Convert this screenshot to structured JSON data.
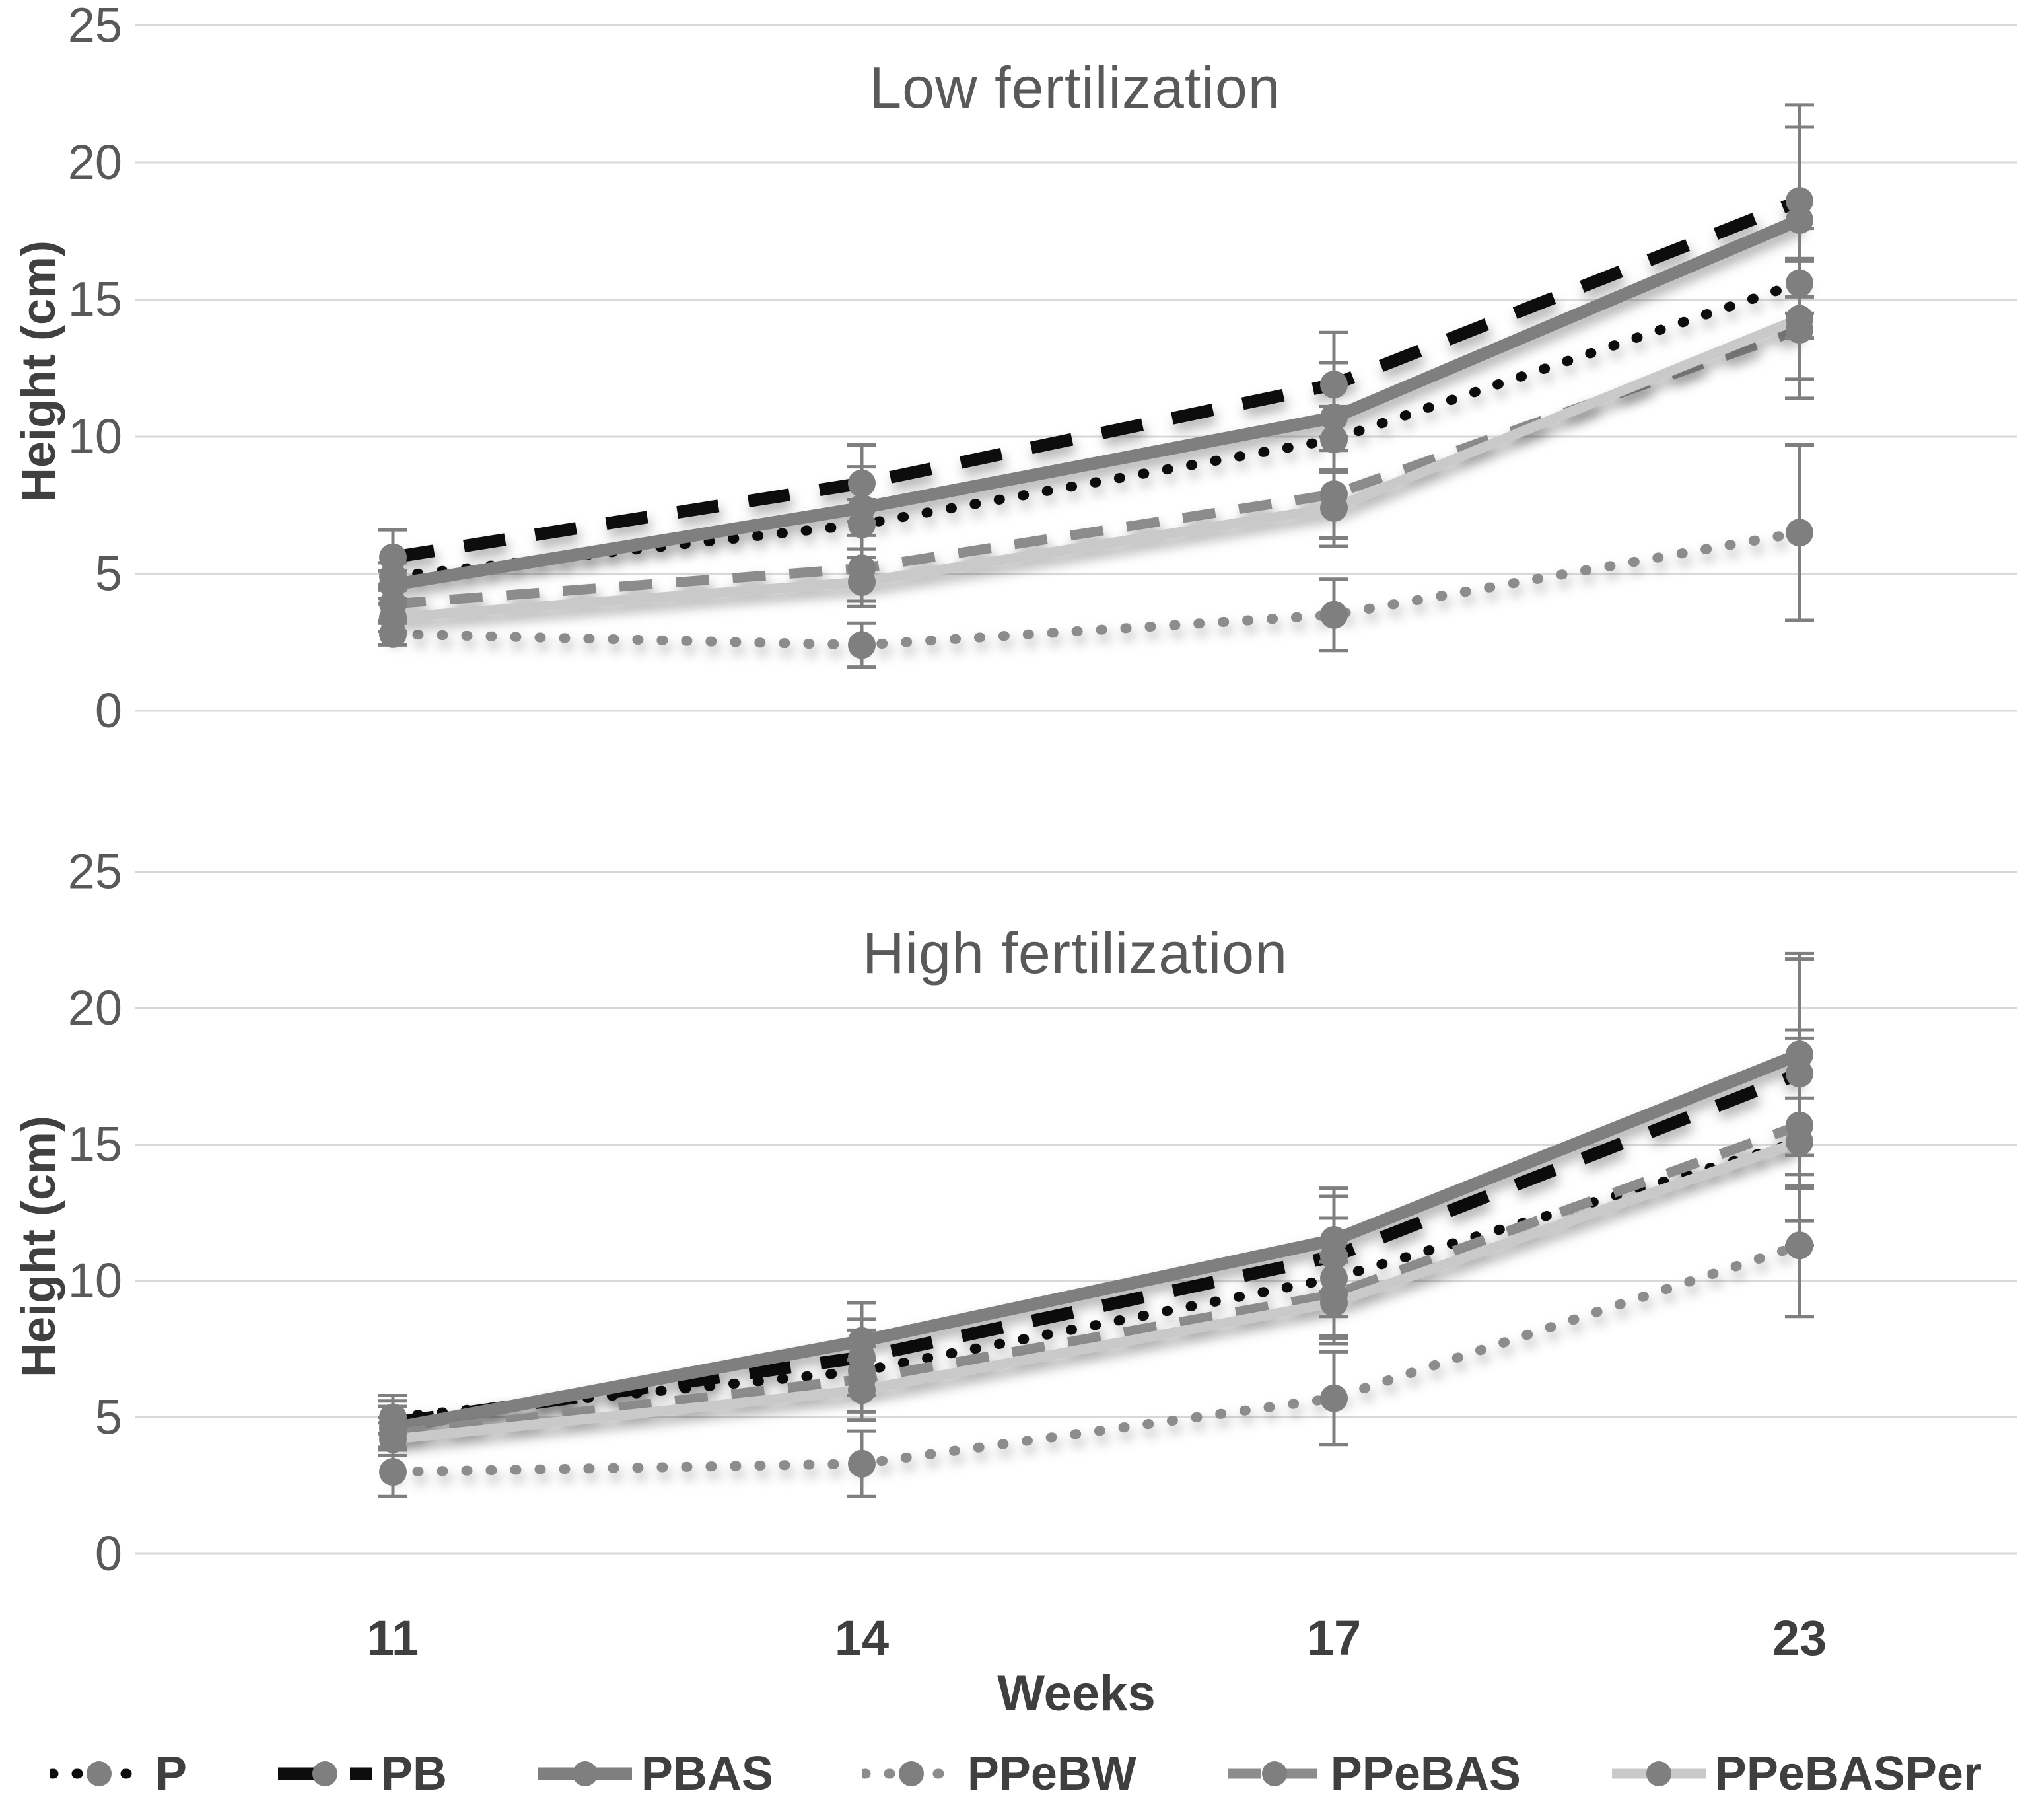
{
  "figure": {
    "background": "#ffffff",
    "grid_color": "#d9d9d9",
    "marker_color": "#7f7f7f",
    "error_bar_color": "#7f7f7f",
    "tick_label_color": "#595959",
    "category_label_color": "#3f3f3f",
    "title_color": "#595959"
  },
  "chart_data": [
    {
      "type": "line",
      "title": "Low fertilization",
      "ylabel": "Height (cm)",
      "xlabel": "",
      "x_categories": [
        11,
        14,
        17,
        23
      ],
      "ylim": [
        0,
        25
      ],
      "yticks": [
        25,
        20,
        15,
        10,
        5,
        0
      ],
      "grid": "horizontal",
      "legend_position": "bottom-shared",
      "marker": "circle",
      "series": [
        {
          "name": "P",
          "color": "#0d0d0d",
          "line": "dotted",
          "width": 15,
          "values": [
            4.9,
            6.8,
            9.9,
            15.6
          ],
          "errors": [
            0.5,
            0.9,
            1.2,
            2.0
          ]
        },
        {
          "name": "PB",
          "color": "#0d0d0d",
          "line": "dashed",
          "width": 19,
          "values": [
            5.6,
            8.3,
            11.9,
            18.6
          ],
          "errors": [
            1.0,
            1.4,
            1.9,
            3.5
          ]
        },
        {
          "name": "PBAS",
          "color": "#7f7f7f",
          "line": "solid",
          "width": 19,
          "values": [
            4.6,
            7.4,
            10.7,
            17.9
          ],
          "errors": [
            0.5,
            1.5,
            2.0,
            3.4
          ]
        },
        {
          "name": "PPeBW",
          "color": "#8c8c8c",
          "line": "dotted",
          "width": 15,
          "values": [
            2.8,
            2.4,
            3.5,
            6.5
          ],
          "errors": [
            0.4,
            0.8,
            1.3,
            3.2
          ]
        },
        {
          "name": "PPeBAS",
          "color": "#8c8c8c",
          "line": "dashed",
          "width": 15,
          "values": [
            3.9,
            5.2,
            7.9,
            13.9
          ],
          "errors": [
            0.6,
            1.2,
            1.6,
            2.5
          ]
        },
        {
          "name": "PPeBASPer",
          "color": "#c9c9c9",
          "line": "solid",
          "width": 15,
          "values": [
            3.4,
            4.7,
            7.4,
            14.3
          ],
          "errors": [
            0.5,
            0.9,
            1.4,
            2.2
          ]
        }
      ]
    },
    {
      "type": "line",
      "title": "High fertilization",
      "ylabel": "Height (cm)",
      "xlabel": "Weeks",
      "x_categories": [
        11,
        14,
        17,
        23
      ],
      "ylim": [
        0,
        25
      ],
      "yticks": [
        25,
        20,
        15,
        10,
        5,
        0
      ],
      "grid": "horizontal",
      "legend_position": "bottom-shared",
      "marker": "circle",
      "series": [
        {
          "name": "P",
          "color": "#0d0d0d",
          "line": "dotted",
          "width": 15,
          "values": [
            5.0,
            6.7,
            10.1,
            15.1
          ],
          "errors": [
            0.6,
            1.5,
            2.2,
            3.8
          ]
        },
        {
          "name": "PB",
          "color": "#0d0d0d",
          "line": "dashed",
          "width": 19,
          "values": [
            4.8,
            7.2,
            10.9,
            17.6
          ],
          "errors": [
            1.0,
            1.4,
            2.2,
            4.2
          ]
        },
        {
          "name": "PBAS",
          "color": "#7f7f7f",
          "line": "solid",
          "width": 19,
          "values": [
            4.6,
            7.8,
            11.5,
            18.3
          ],
          "errors": [
            0.8,
            1.4,
            1.9,
            3.7
          ]
        },
        {
          "name": "PPeBW",
          "color": "#8c8c8c",
          "line": "dotted",
          "width": 15,
          "values": [
            3.0,
            3.3,
            5.7,
            11.3
          ],
          "errors": [
            0.9,
            1.2,
            1.7,
            2.6
          ]
        },
        {
          "name": "PPeBAS",
          "color": "#8c8c8c",
          "line": "dashed",
          "width": 15,
          "values": [
            4.4,
            6.4,
            9.5,
            15.7
          ],
          "errors": [
            0.6,
            1.2,
            1.5,
            3.5
          ]
        },
        {
          "name": "PPeBASPer",
          "color": "#c9c9c9",
          "line": "solid",
          "width": 15,
          "values": [
            4.2,
            6.0,
            9.2,
            15.1
          ],
          "errors": [
            0.6,
            1.1,
            1.5,
            1.6
          ]
        }
      ]
    }
  ],
  "legend": {
    "items": [
      "P",
      "PB",
      "PBAS",
      "PPeBW",
      "PPeBAS",
      "PPeBASPer"
    ]
  }
}
